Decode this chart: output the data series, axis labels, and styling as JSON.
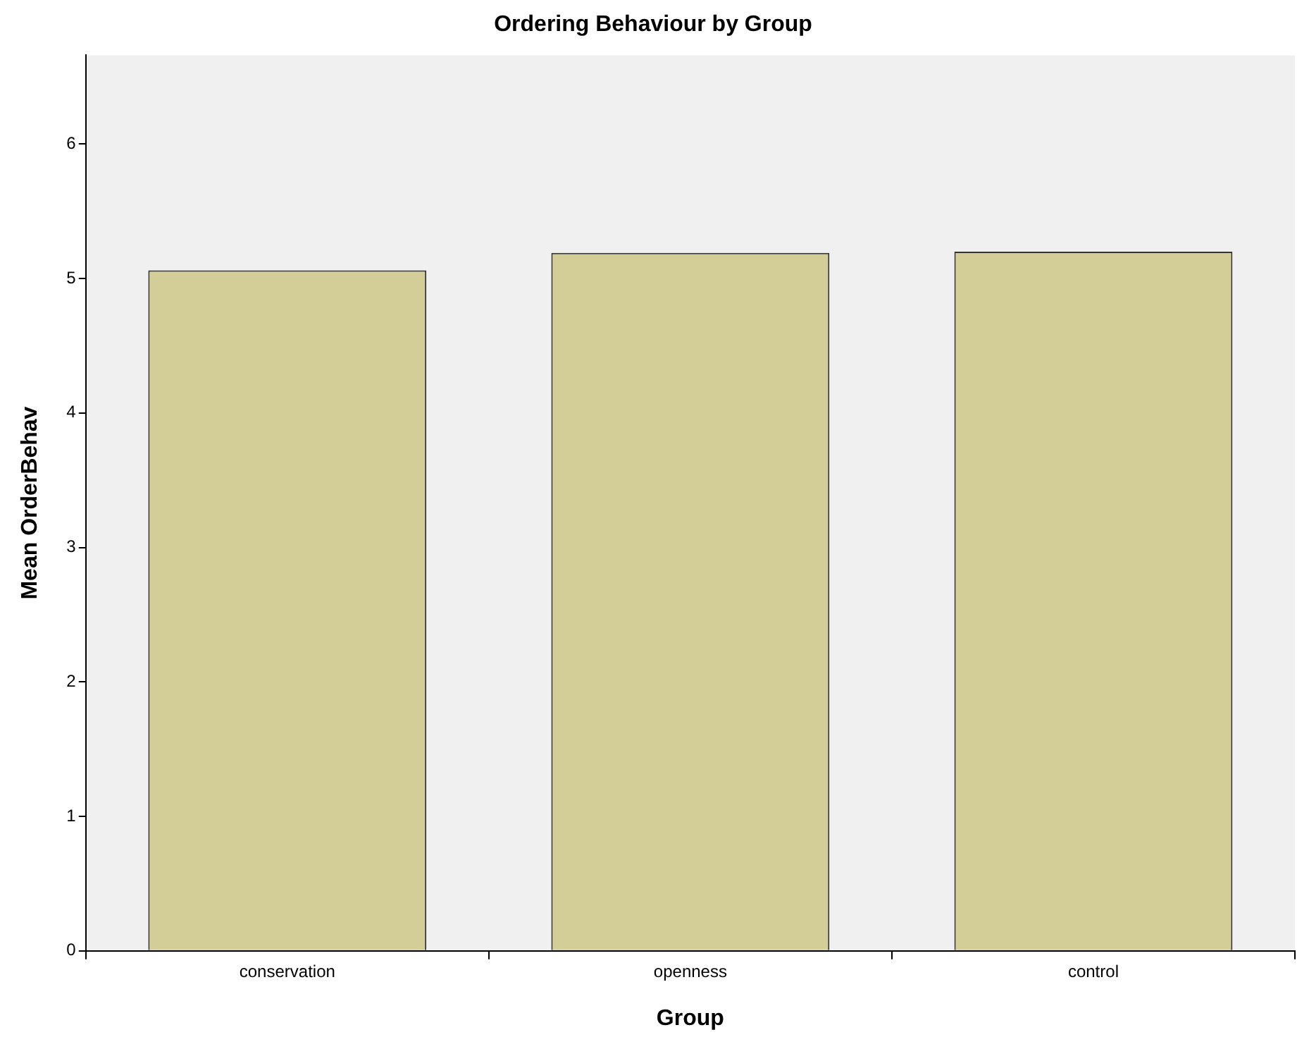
{
  "chart_data": {
    "type": "bar",
    "title": "Ordering Behaviour by Group",
    "xlabel": "Group",
    "ylabel": "Mean OrderBehav",
    "categories": [
      "conservation",
      "openness",
      "control"
    ],
    "values": [
      5.06,
      5.19,
      5.2
    ],
    "color": "#d3ce97",
    "ylim": [
      0,
      6.66
    ],
    "yticks": [
      0,
      1,
      2,
      3,
      4,
      5,
      6
    ],
    "grid": false,
    "legend": false
  }
}
